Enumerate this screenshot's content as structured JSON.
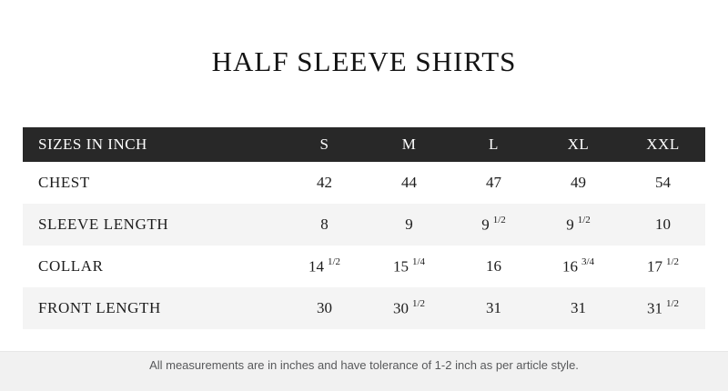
{
  "page": {
    "title": "HALF SLEEVE SHIRTS"
  },
  "footer": {
    "note": "All measurements are in inches and have tolerance of 1-2 inch as per article style."
  },
  "colors": {
    "header_bg": "#282828",
    "header_text": "#ffffff",
    "row_alt_bg": "#f4f4f4",
    "body_text": "#1c1c1c",
    "footer_bg": "#f1f1f1",
    "footer_text": "#58595b"
  },
  "chart_data": {
    "type": "table",
    "title": "HALF SLEEVE SHIRTS",
    "columns": [
      "SIZES IN INCH",
      "S",
      "M",
      "L",
      "XL",
      "XXL"
    ],
    "rows": [
      {
        "label": "CHEST",
        "values": [
          "42",
          "44",
          "47",
          "49",
          "54"
        ]
      },
      {
        "label": "SLEEVE LENGTH",
        "values": [
          "8",
          "9",
          "9 1/2",
          "9 1/2",
          "10"
        ]
      },
      {
        "label": "COLLAR",
        "values": [
          "14 1/2",
          "15 1/4",
          "16",
          "16 3/4",
          "17 1/2"
        ]
      },
      {
        "label": "FRONT LENGTH",
        "values": [
          "30",
          "30 1/2",
          "31",
          "31",
          "31 1/2"
        ]
      }
    ],
    "footnote": "All measurements are in inches and have tolerance of 1-2 inch as per article style."
  }
}
